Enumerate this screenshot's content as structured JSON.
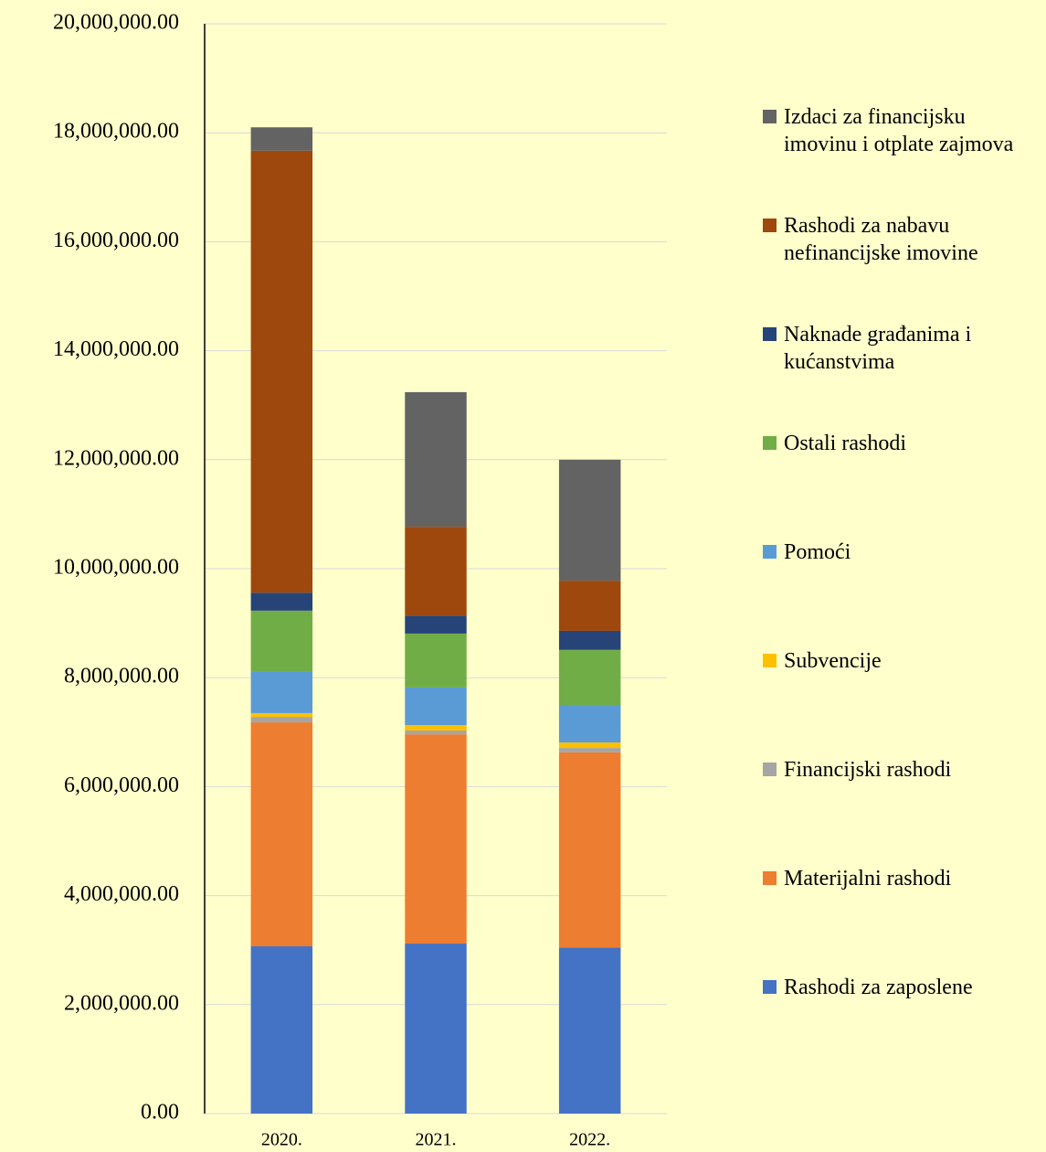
{
  "chart_data": {
    "type": "stacked_bar",
    "categories": [
      "2020.",
      "2021.",
      "2022."
    ],
    "series": [
      {
        "name": "Rashodi za zaposlene",
        "color": "#4472c4",
        "values": [
          3070000,
          3120000,
          3050000
        ]
      },
      {
        "name": "Materijalni rashodi",
        "color": "#ed7d31",
        "values": [
          4110000,
          3840000,
          3580000
        ]
      },
      {
        "name": "Financijski rashodi",
        "color": "#a5a5a5",
        "values": [
          100000,
          70000,
          80000
        ]
      },
      {
        "name": "Subvencije",
        "color": "#ffc000",
        "values": [
          70000,
          100000,
          100000
        ]
      },
      {
        "name": "Pomoći",
        "color": "#5b9bd5",
        "values": [
          770000,
          690000,
          690000
        ]
      },
      {
        "name": "Ostali rashodi",
        "color": "#70ad47",
        "values": [
          1110000,
          990000,
          1010000
        ]
      },
      {
        "name": "Naknade građanima i kućanstvima",
        "color": "#264478",
        "values": [
          330000,
          330000,
          350000
        ]
      },
      {
        "name": "Rashodi za nabavu nefinancijske imovine",
        "color": "#9e480e",
        "values": [
          8110000,
          1630000,
          920000
        ]
      },
      {
        "name": "Izdaci za financijsku imovinu i otplate zajmova",
        "color": "#636363",
        "values": [
          430000,
          2470000,
          2220000
        ]
      }
    ],
    "ylim": [
      0,
      20000000
    ],
    "yticks": [
      {
        "value": 0,
        "label": "0.00"
      },
      {
        "value": 2000000,
        "label": "2,000,000.00"
      },
      {
        "value": 4000000,
        "label": "4,000,000.00"
      },
      {
        "value": 6000000,
        "label": "6,000,000.00"
      },
      {
        "value": 8000000,
        "label": "8,000,000.00"
      },
      {
        "value": 10000000,
        "label": "10,000,000.00"
      },
      {
        "value": 12000000,
        "label": "12,000,000.00"
      },
      {
        "value": 14000000,
        "label": "14,000,000.00"
      },
      {
        "value": 16000000,
        "label": "16,000,000.00"
      },
      {
        "value": 18000000,
        "label": "18,000,000.00"
      },
      {
        "value": 20000000,
        "label": "20,000,000.00"
      }
    ],
    "grid": true,
    "legend": "right",
    "reverse_legend": true
  }
}
